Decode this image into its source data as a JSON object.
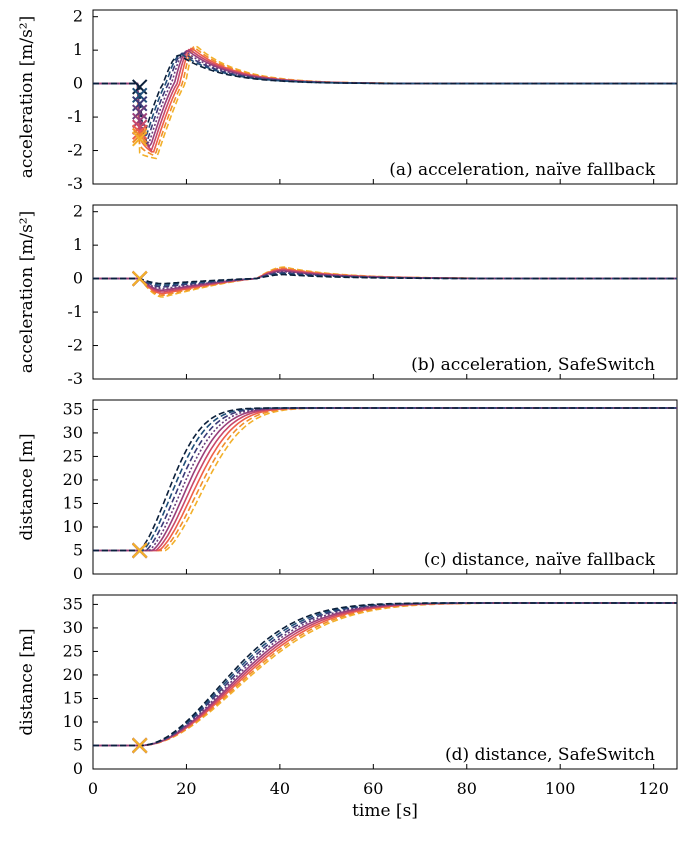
{
  "colors": [
    "#0b1f3a",
    "#1f4e79",
    "#3a3a78",
    "#6a3d7a",
    "#9a3f7a",
    "#c9486a",
    "#ee5f4a",
    "#f08d2a",
    "#f2b02a"
  ],
  "x_axis": {
    "label": "time [s]",
    "ticks": [
      0,
      20,
      40,
      60,
      80,
      100,
      120
    ],
    "range": [
      0,
      125
    ]
  },
  "chart_data": [
    {
      "type": "line",
      "annotation": "(a) acceleration, naïve fallback",
      "ylabel": "acceleration [m/s²]",
      "ylim": [
        -3,
        2.2
      ],
      "yticks": [
        -3,
        -2,
        -1,
        0,
        1,
        2
      ],
      "series_count": 9,
      "min_value_range": [
        -2.3,
        -1.6
      ],
      "peak_value_range": [
        0.85,
        1.15
      ],
      "switch_markers": {
        "x": 10,
        "y": [
          -0.1,
          -0.35,
          -0.6,
          -0.85,
          -1.1,
          -1.3,
          -1.45,
          -1.55,
          -1.65
        ]
      }
    },
    {
      "type": "line",
      "annotation": "(b) acceleration, SafeSwitch",
      "ylabel": "acceleration [m/s²]",
      "ylim": [
        -3,
        2.2
      ],
      "yticks": [
        -3,
        -2,
        -1,
        0,
        1,
        2
      ],
      "series_count": 9,
      "min_value_range": [
        -0.15,
        -0.55
      ],
      "peak_value_range": [
        0.1,
        0.35
      ],
      "switch_markers": {
        "x": 10,
        "y": [
          0,
          0,
          0,
          0,
          0,
          0,
          0,
          0,
          0
        ]
      }
    },
    {
      "type": "line",
      "annotation": "(c) distance, naïve fallback",
      "ylabel": "distance [m]",
      "ylim": [
        0,
        37
      ],
      "yticks": [
        0,
        5,
        10,
        15,
        20,
        25,
        30,
        35
      ],
      "series_count": 9,
      "start_value": 5,
      "final_value": 35.3,
      "switch_markers": {
        "x": 10,
        "y": [
          5,
          5,
          5,
          5,
          5,
          5,
          5,
          5,
          5
        ]
      }
    },
    {
      "type": "line",
      "annotation": "(d) distance, SafeSwitch",
      "ylabel": "distance [m]",
      "ylim": [
        0,
        37
      ],
      "yticks": [
        0,
        5,
        10,
        15,
        20,
        25,
        30,
        35
      ],
      "series_count": 9,
      "start_value": 5,
      "final_value": 35.3,
      "switch_markers": {
        "x": 10,
        "y": [
          5,
          5,
          5,
          5,
          5,
          5,
          5,
          5,
          5
        ]
      }
    }
  ]
}
